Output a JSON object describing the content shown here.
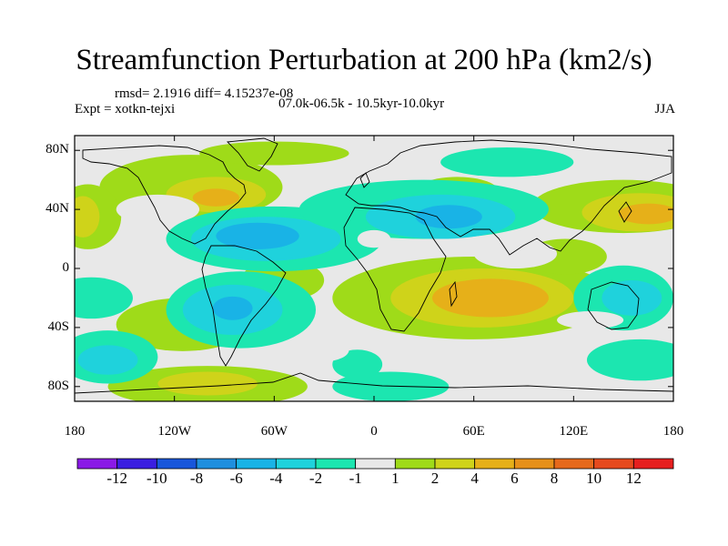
{
  "title": "Streamfunction Perturbation at 200 hPa (km2/s)",
  "stats": "rmsd= 2.1916 diff= 4.15237e-08",
  "experiment": "Expt = xotkn-tejxi",
  "period": "07.0k-06.5k - 10.5kyr-10.0kyr",
  "season": "JJA",
  "map": {
    "lon_range": [
      -180,
      180
    ],
    "lat_range": [
      -90,
      90
    ],
    "lon_ticks": [
      {
        "lon": -180,
        "label": "180"
      },
      {
        "lon": -120,
        "label": "120W"
      },
      {
        "lon": -60,
        "label": "60W"
      },
      {
        "lon": 0,
        "label": "0"
      },
      {
        "lon": 60,
        "label": "60E"
      },
      {
        "lon": 120,
        "label": "120E"
      },
      {
        "lon": 180,
        "label": "180"
      }
    ],
    "lat_ticks": [
      {
        "lat": 80,
        "label": "80N"
      },
      {
        "lat": 40,
        "label": "40N"
      },
      {
        "lat": 0,
        "label": "0"
      },
      {
        "lat": -40,
        "label": "40S"
      },
      {
        "lat": -80,
        "label": "80S"
      }
    ]
  },
  "colorbar": {
    "colors": [
      "#8a1ae6",
      "#3a1ee0",
      "#1856db",
      "#1f8fde",
      "#19b3e6",
      "#1fd2dc",
      "#1ce6b0",
      "#e8e8e8",
      "#9fdb19",
      "#cfd31a",
      "#e6b019",
      "#e6901a",
      "#e6691c",
      "#e64a1e",
      "#e61f1f"
    ],
    "labels": [
      "-12",
      "-10",
      "-8",
      "-6",
      "-4",
      "-2",
      "-1",
      "1",
      "2",
      "4",
      "6",
      "8",
      "10",
      "12"
    ]
  },
  "blobs": [
    {
      "lon": -110,
      "lat": 55,
      "rx": 55,
      "ry": 22,
      "color": "#9fdb19"
    },
    {
      "lon": -95,
      "lat": 50,
      "rx": 30,
      "ry": 12,
      "color": "#cfd31a"
    },
    {
      "lon": -95,
      "lat": 48,
      "rx": 14,
      "ry": 6,
      "color": "#e6b019"
    },
    {
      "lon": -60,
      "lat": 78,
      "rx": 45,
      "ry": 8,
      "color": "#9fdb19"
    },
    {
      "lon": -172,
      "lat": 35,
      "rx": 20,
      "ry": 22,
      "color": "#9fdb19"
    },
    {
      "lon": -175,
      "lat": 35,
      "rx": 10,
      "ry": 14,
      "color": "#cfd31a"
    },
    {
      "lon": -130,
      "lat": 40,
      "rx": 25,
      "ry": 10,
      "color": "#e8e8e8"
    },
    {
      "lon": -115,
      "lat": -38,
      "rx": 40,
      "ry": 18,
      "color": "#9fdb19"
    },
    {
      "lon": -100,
      "lat": -80,
      "rx": 60,
      "ry": 14,
      "color": "#9fdb19"
    },
    {
      "lon": -100,
      "lat": -78,
      "rx": 30,
      "ry": 8,
      "color": "#cfd31a"
    },
    {
      "lon": 150,
      "lat": 42,
      "rx": 55,
      "ry": 18,
      "color": "#9fdb19"
    },
    {
      "lon": 160,
      "lat": 38,
      "rx": 35,
      "ry": 13,
      "color": "#cfd31a"
    },
    {
      "lon": 165,
      "lat": 37,
      "rx": 18,
      "ry": 7,
      "color": "#e6b019"
    },
    {
      "lon": 50,
      "lat": 52,
      "rx": 25,
      "ry": 10,
      "color": "#9fdb19"
    },
    {
      "lon": 60,
      "lat": -20,
      "rx": 85,
      "ry": 28,
      "color": "#9fdb19"
    },
    {
      "lon": 65,
      "lat": -20,
      "rx": 55,
      "ry": 20,
      "color": "#cfd31a"
    },
    {
      "lon": 70,
      "lat": -20,
      "rx": 35,
      "ry": 13,
      "color": "#e6b019"
    },
    {
      "lon": 115,
      "lat": 8,
      "rx": 25,
      "ry": 12,
      "color": "#9fdb19"
    },
    {
      "lon": -55,
      "lat": -8,
      "rx": 25,
      "ry": 14,
      "color": "#9fdb19"
    },
    {
      "lon": 10,
      "lat": -80,
      "rx": 35,
      "ry": 10,
      "color": "#1ce6b0"
    },
    {
      "lon": -60,
      "lat": 20,
      "rx": 65,
      "ry": 22,
      "color": "#1ce6b0"
    },
    {
      "lon": -65,
      "lat": 20,
      "rx": 45,
      "ry": 15,
      "color": "#1fd2dc"
    },
    {
      "lon": -70,
      "lat": 22,
      "rx": 25,
      "ry": 9,
      "color": "#19b3e6"
    },
    {
      "lon": 30,
      "lat": 40,
      "rx": 75,
      "ry": 20,
      "color": "#1ce6b0"
    },
    {
      "lon": 40,
      "lat": 35,
      "rx": 45,
      "ry": 15,
      "color": "#1fd2dc"
    },
    {
      "lon": 45,
      "lat": 35,
      "rx": 20,
      "ry": 8,
      "color": "#19b3e6"
    },
    {
      "lon": -80,
      "lat": -28,
      "rx": 45,
      "ry": 26,
      "color": "#1ce6b0"
    },
    {
      "lon": -85,
      "lat": -28,
      "rx": 30,
      "ry": 17,
      "color": "#1fd2dc"
    },
    {
      "lon": -85,
      "lat": -27,
      "rx": 12,
      "ry": 8,
      "color": "#19b3e6"
    },
    {
      "lon": -170,
      "lat": -20,
      "rx": 25,
      "ry": 14,
      "color": "#1ce6b0"
    },
    {
      "lon": -160,
      "lat": -60,
      "rx": 30,
      "ry": 18,
      "color": "#1ce6b0"
    },
    {
      "lon": -160,
      "lat": -62,
      "rx": 18,
      "ry": 10,
      "color": "#1fd2dc"
    },
    {
      "lon": 150,
      "lat": -20,
      "rx": 30,
      "ry": 22,
      "color": "#1ce6b0"
    },
    {
      "lon": 155,
      "lat": -20,
      "rx": 18,
      "ry": 12,
      "color": "#1fd2dc"
    },
    {
      "lon": 160,
      "lat": -62,
      "rx": 32,
      "ry": 14,
      "color": "#1ce6b0"
    },
    {
      "lon": 80,
      "lat": 72,
      "rx": 40,
      "ry": 10,
      "color": "#1ce6b0"
    },
    {
      "lon": -10,
      "lat": -65,
      "rx": 15,
      "ry": 10,
      "color": "#1ce6b0"
    },
    {
      "lon": -30,
      "lat": -55,
      "rx": 15,
      "ry": 8,
      "color": "#e8e8e8"
    },
    {
      "lon": 0,
      "lat": 20,
      "rx": 10,
      "ry": 6,
      "color": "#e8e8e8"
    },
    {
      "lon": 85,
      "lat": 10,
      "rx": 25,
      "ry": 10,
      "color": "#e8e8e8"
    },
    {
      "lon": 130,
      "lat": -35,
      "rx": 20,
      "ry": 6,
      "color": "#e8e8e8"
    }
  ]
}
